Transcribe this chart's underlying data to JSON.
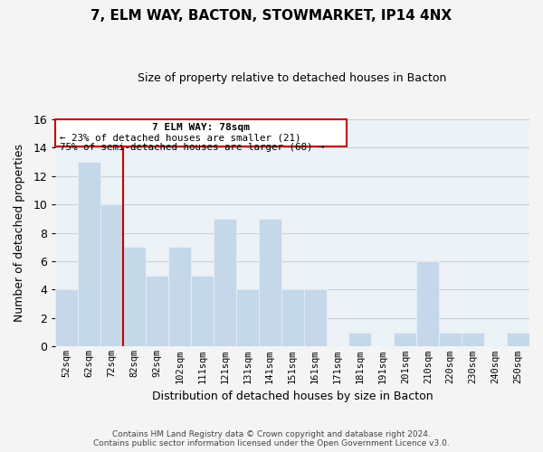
{
  "title": "7, ELM WAY, BACTON, STOWMARKET, IP14 4NX",
  "subtitle": "Size of property relative to detached houses in Bacton",
  "xlabel": "Distribution of detached houses by size in Bacton",
  "ylabel": "Number of detached properties",
  "bar_color": "#c5d8ea",
  "bar_edge_color": "#e8f0f8",
  "grid_color": "#c8d0d8",
  "bg_color": "#edf2f7",
  "bins": [
    "52sqm",
    "62sqm",
    "72sqm",
    "82sqm",
    "92sqm",
    "102sqm",
    "111sqm",
    "121sqm",
    "131sqm",
    "141sqm",
    "151sqm",
    "161sqm",
    "171sqm",
    "181sqm",
    "191sqm",
    "201sqm",
    "210sqm",
    "220sqm",
    "230sqm",
    "240sqm",
    "250sqm"
  ],
  "values": [
    4,
    13,
    10,
    7,
    5,
    7,
    5,
    9,
    4,
    9,
    4,
    4,
    0,
    1,
    0,
    1,
    6,
    1,
    1,
    0,
    1
  ],
  "ylim": [
    0,
    16
  ],
  "yticks": [
    0,
    2,
    4,
    6,
    8,
    10,
    12,
    14,
    16
  ],
  "vline_x_index": 2.5,
  "annotation_title": "7 ELM WAY: 78sqm",
  "annotation_line1": "← 23% of detached houses are smaller (21)",
  "annotation_line2": "75% of semi-detached houses are larger (68) →",
  "annotation_box_color": "#ffffff",
  "annotation_box_edge_color": "#cc0000",
  "footer_line1": "Contains HM Land Registry data © Crown copyright and database right 2024.",
  "footer_line2": "Contains public sector information licensed under the Open Government Licence v3.0."
}
